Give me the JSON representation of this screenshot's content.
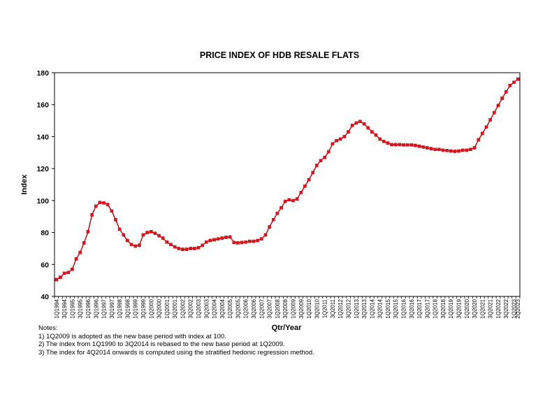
{
  "chart_data": {
    "type": "line",
    "title": "PRICE INDEX OF HDB RESALE FLATS",
    "xlabel": "Qtr/Year",
    "ylabel": "Index",
    "ylim": [
      40,
      180
    ],
    "yticks": [
      40,
      60,
      80,
      100,
      120,
      140,
      160,
      180
    ],
    "grid": false,
    "legend": "none",
    "line_color": "#C00000",
    "marker_color": "#E0101E",
    "x": [
      "1Q1994",
      "2Q1994",
      "3Q1994",
      "4Q1994",
      "1Q1995",
      "2Q1995",
      "3Q1995",
      "4Q1995",
      "1Q1996",
      "2Q1996",
      "3Q1996",
      "4Q1996",
      "1Q1997",
      "2Q1997",
      "3Q1997",
      "4Q1997",
      "1Q1998",
      "2Q1998",
      "3Q1998",
      "4Q1998",
      "1Q1999",
      "2Q1999",
      "3Q1999",
      "4Q1999",
      "1Q2000",
      "2Q2000",
      "3Q2000",
      "4Q2000",
      "1Q2001",
      "2Q2001",
      "3Q2001",
      "4Q2001",
      "1Q2002",
      "2Q2002",
      "3Q2002",
      "4Q2002",
      "1Q2003",
      "2Q2003",
      "3Q2003",
      "4Q2003",
      "1Q2004",
      "2Q2004",
      "3Q2004",
      "4Q2004",
      "1Q2005",
      "2Q2005",
      "3Q2005",
      "4Q2005",
      "1Q2006",
      "2Q2006",
      "3Q2006",
      "4Q2006",
      "1Q2007",
      "2Q2007",
      "3Q2007",
      "4Q2007",
      "1Q2008",
      "2Q2008",
      "3Q2008",
      "4Q2008",
      "1Q2009",
      "2Q2009",
      "3Q2009",
      "4Q2009",
      "1Q2010",
      "2Q2010",
      "3Q2010",
      "4Q2010",
      "1Q2011",
      "2Q2011",
      "3Q2011",
      "4Q2011",
      "1Q2012",
      "2Q2012",
      "3Q2012",
      "4Q2012",
      "1Q2013",
      "2Q2013",
      "3Q2013",
      "4Q2013",
      "1Q2014",
      "2Q2014",
      "3Q2014",
      "4Q2014",
      "1Q2015",
      "2Q2015",
      "3Q2015",
      "4Q2015",
      "1Q2016",
      "2Q2016",
      "3Q2016",
      "4Q2016",
      "1Q2017",
      "2Q2017",
      "3Q2017",
      "4Q2017",
      "1Q2018",
      "2Q2018",
      "3Q2018",
      "4Q2018",
      "1Q2019",
      "2Q2019",
      "3Q2019",
      "4Q2019",
      "1Q2020",
      "2Q2020",
      "3Q2020",
      "4Q2020",
      "1Q2021",
      "2Q2021",
      "3Q2021",
      "4Q2021",
      "1Q2022",
      "2Q2022",
      "3Q2022",
      "4Q2022",
      "1Q2023",
      "2Q2023"
    ],
    "x_tick_labels": [
      "1Q1994",
      "3Q1994",
      "1Q1995",
      "3Q1995",
      "1Q1996",
      "3Q1996",
      "1Q1997",
      "3Q1997",
      "1Q1998",
      "3Q1998",
      "1Q1999",
      "3Q1999",
      "1Q2000",
      "3Q2000",
      "1Q2001",
      "3Q2001",
      "1Q2002",
      "3Q2002",
      "1Q2003",
      "3Q2003",
      "1Q2004",
      "3Q2004",
      "1Q2005",
      "3Q2005",
      "1Q2006",
      "3Q2006",
      "1Q2007",
      "3Q2007",
      "1Q2008",
      "3Q2008",
      "1Q2009",
      "3Q2009",
      "1Q2010",
      "3Q2010",
      "1Q2011",
      "3Q2011",
      "1Q2012",
      "3Q2012",
      "1Q2013",
      "3Q2013",
      "1Q2014",
      "3Q2014",
      "1Q2015",
      "3Q2015",
      "1Q2016",
      "3Q2016",
      "1Q2017",
      "3Q2017",
      "1Q2018",
      "3Q2018",
      "1Q2019",
      "3Q2019",
      "1Q2020",
      "3Q2020",
      "1Q2021",
      "3Q2021",
      "1Q2022",
      "3Q2022",
      "1Q2023",
      "2Q2023"
    ],
    "values": [
      50.5,
      52,
      54.5,
      55,
      57,
      63.5,
      67.5,
      73.5,
      80.5,
      91,
      96.5,
      98.8,
      98.5,
      97.5,
      93.5,
      88,
      82,
      78.5,
      75,
      72.5,
      71.5,
      72,
      78.5,
      80,
      80.5,
      79.5,
      78,
      76.5,
      74,
      72.5,
      71,
      70,
      69.5,
      69.5,
      70,
      70,
      70.5,
      72,
      74,
      75,
      75.5,
      76,
      76.5,
      77,
      77.2,
      73.8,
      73.5,
      73.8,
      74,
      74.5,
      74.5,
      75,
      76,
      78.5,
      83.5,
      88,
      92,
      95.5,
      99.5,
      100.5,
      100,
      101,
      105,
      109,
      113,
      117.5,
      122,
      125,
      127,
      130.5,
      135.5,
      137.5,
      138.5,
      140,
      143,
      147,
      148.5,
      149.5,
      148,
      145.5,
      143,
      141,
      138.5,
      137,
      136,
      135,
      135,
      135,
      134.8,
      134.8,
      134.8,
      134.5,
      134,
      133.5,
      133,
      132.5,
      132,
      132,
      131.5,
      131.3,
      131,
      130.8,
      131,
      131.5,
      131.5,
      132,
      133,
      138,
      142,
      146,
      150.5,
      155,
      159.5,
      164,
      168,
      172,
      174,
      176
    ]
  },
  "notes": {
    "heading": "Notes:",
    "lines": [
      "1) 1Q2009 is adopted as the new base period with index at 100.",
      "2) The index from 1Q1990 to 3Q2014 is rebased to the new base  period at 1Q2009.",
      "3) The index for 4Q2014 onwards is computed using the stratified hedonic regression method."
    ]
  }
}
